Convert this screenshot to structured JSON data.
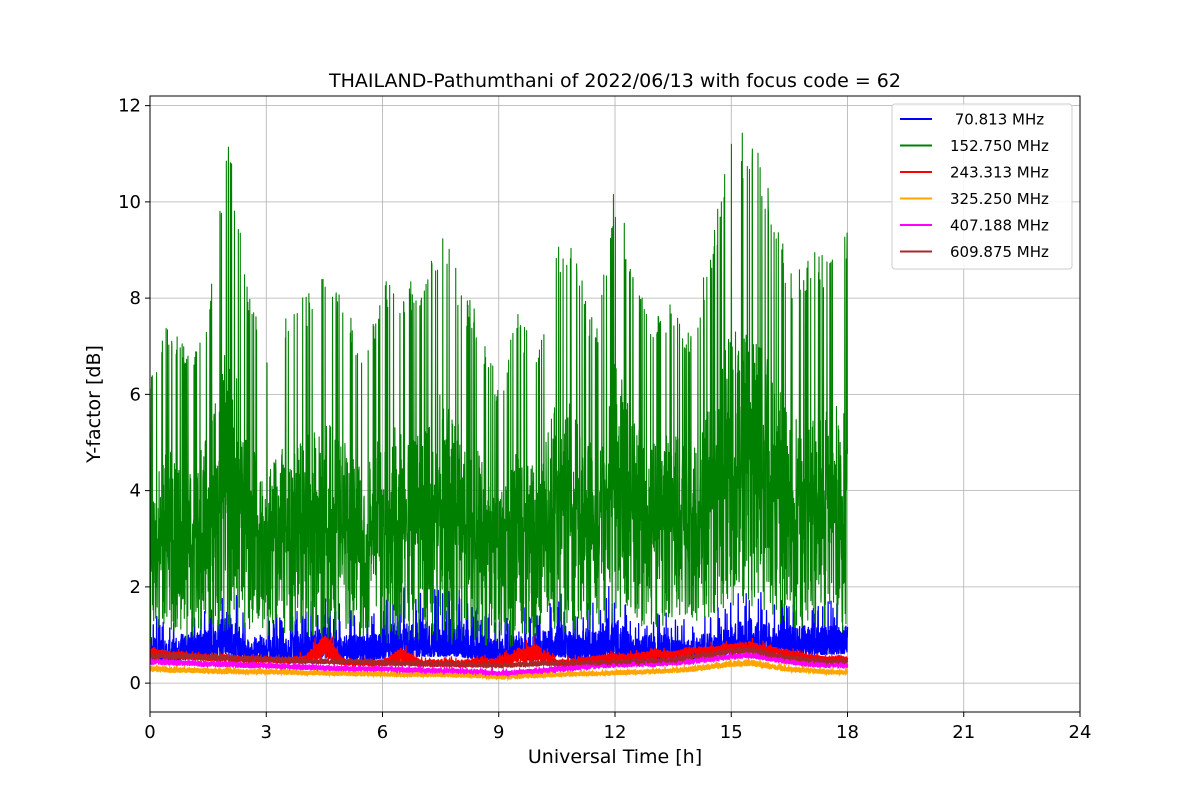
{
  "chart_data": {
    "type": "line",
    "title": "THAILAND-Pathumthani of 2022/06/13 with focus code = 62",
    "xlabel": "Universal Time [h]",
    "ylabel": "Y-factor [dB]",
    "xlim": [
      0,
      24
    ],
    "ylim": [
      -0.6,
      12.2
    ],
    "xticks": [
      0,
      3,
      6,
      9,
      12,
      15,
      18,
      21,
      24
    ],
    "yticks": [
      0,
      2,
      4,
      6,
      8,
      10,
      12
    ],
    "grid": true,
    "legend_position": "top-right",
    "series": [
      {
        "name": " 70.813 MHz",
        "color": "#0000ff",
        "x": [
          0,
          0.5,
          1,
          1.5,
          2,
          2.5,
          3,
          3.5,
          4,
          4.5,
          5,
          5.5,
          6,
          6.5,
          7,
          7.5,
          8,
          8.5,
          9,
          9.5,
          10,
          10.5,
          11,
          11.5,
          12,
          12.5,
          13,
          13.5,
          14,
          14.5,
          15,
          15.5,
          16,
          16.5,
          17,
          17.5,
          18
        ],
        "low": [
          0.2,
          0.3,
          0.3,
          0.3,
          0.3,
          0.3,
          0.3,
          0.3,
          0.3,
          0.3,
          0.3,
          0.3,
          0.3,
          0.3,
          0.3,
          0.3,
          0.3,
          0.3,
          0.3,
          0.3,
          0.3,
          0.3,
          0.3,
          0.3,
          0.3,
          0.3,
          0.3,
          0.3,
          0.3,
          0.4,
          0.4,
          0.4,
          0.4,
          0.4,
          0.4,
          0.4,
          0.4
        ],
        "high": [
          1.5,
          1.3,
          1.6,
          1.7,
          2.3,
          1.4,
          1.5,
          1.4,
          1.7,
          1.8,
          1.6,
          1.4,
          1.7,
          2.0,
          2.0,
          2.0,
          2.0,
          1.5,
          1.4,
          1.6,
          1.5,
          2.0,
          1.6,
          1.8,
          2.2,
          1.3,
          1.6,
          1.4,
          1.3,
          1.6,
          1.8,
          2.0,
          1.8,
          1.8,
          1.7,
          1.7,
          1.8
        ]
      },
      {
        "name": "152.750 MHz",
        "color": "#008000",
        "x": [
          0,
          0.5,
          1,
          1.5,
          2,
          2.5,
          3,
          3.5,
          4,
          4.5,
          5,
          5.5,
          6,
          6.5,
          7,
          7.5,
          8,
          8.5,
          9,
          9.5,
          10,
          10.5,
          11,
          11.5,
          12,
          12.5,
          13,
          13.5,
          14,
          14.5,
          15,
          15.5,
          16,
          16.5,
          17,
          17.5,
          18
        ],
        "low": [
          0.8,
          1.1,
          0.9,
          1.2,
          1.0,
          1.1,
          0.9,
          1.0,
          0.8,
          0.9,
          0.9,
          0.9,
          0.8,
          0.9,
          0.9,
          0.8,
          0.8,
          0.8,
          0.7,
          0.8,
          0.9,
          0.9,
          1.0,
          0.9,
          1.0,
          1.2,
          1.1,
          1.2,
          1.3,
          1.2,
          1.6,
          1.5,
          1.5,
          1.0,
          0.9,
          0.9,
          1.0
        ],
        "high": [
          6.3,
          7.6,
          6.8,
          8.0,
          11.6,
          8.5,
          6.7,
          7.7,
          8.1,
          8.5,
          8.3,
          6.6,
          8.4,
          8.3,
          8.5,
          9.6,
          8.4,
          7.6,
          6.2,
          7.7,
          6.9,
          9.3,
          9.0,
          7.3,
          10.6,
          8.5,
          7.6,
          8.0,
          7.3,
          9.4,
          11.3,
          11.6,
          10.3,
          8.7,
          9.0,
          8.9,
          9.4
        ]
      },
      {
        "name": "243.313 MHz",
        "color": "#ff0000",
        "x": [
          0,
          0.5,
          1,
          1.5,
          2,
          2.5,
          3,
          3.5,
          4,
          4.5,
          5,
          5.5,
          6,
          6.5,
          7,
          7.5,
          8,
          8.5,
          9,
          9.5,
          10,
          10.5,
          11,
          11.5,
          12,
          12.5,
          13,
          13.5,
          14,
          14.5,
          15,
          15.5,
          16,
          16.5,
          17,
          17.5,
          18
        ],
        "low": [
          0.5,
          0.45,
          0.45,
          0.4,
          0.4,
          0.38,
          0.38,
          0.35,
          0.33,
          0.33,
          0.3,
          0.3,
          0.3,
          0.28,
          0.28,
          0.27,
          0.26,
          0.25,
          0.25,
          0.28,
          0.3,
          0.3,
          0.32,
          0.35,
          0.38,
          0.4,
          0.42,
          0.45,
          0.5,
          0.55,
          0.6,
          0.62,
          0.55,
          0.5,
          0.45,
          0.42,
          0.42
        ],
        "high": [
          0.8,
          0.75,
          0.7,
          0.65,
          0.65,
          0.6,
          0.6,
          0.6,
          0.65,
          1.3,
          0.6,
          0.55,
          0.55,
          0.9,
          0.55,
          0.6,
          0.55,
          0.65,
          0.6,
          0.9,
          1.0,
          0.55,
          0.6,
          0.65,
          0.7,
          0.7,
          0.8,
          0.75,
          0.85,
          0.85,
          0.9,
          0.95,
          0.85,
          0.75,
          0.65,
          0.6,
          0.6
        ]
      },
      {
        "name": "325.250 MHz",
        "color": "#ffa500",
        "x": [
          0,
          0.5,
          1,
          1.5,
          2,
          2.5,
          3,
          3.5,
          4,
          4.5,
          5,
          5.5,
          6,
          6.5,
          7,
          7.5,
          8,
          8.5,
          9,
          9.5,
          10,
          10.5,
          11,
          11.5,
          12,
          12.5,
          13,
          13.5,
          14,
          14.5,
          15,
          15.5,
          16,
          16.5,
          17,
          17.5,
          18
        ],
        "low": [
          0.2,
          0.18,
          0.18,
          0.16,
          0.16,
          0.15,
          0.15,
          0.14,
          0.14,
          0.13,
          0.12,
          0.12,
          0.11,
          0.1,
          0.1,
          0.1,
          0.09,
          0.08,
          0.05,
          0.06,
          0.08,
          0.1,
          0.12,
          0.12,
          0.14,
          0.15,
          0.16,
          0.18,
          0.2,
          0.25,
          0.3,
          0.32,
          0.25,
          0.2,
          0.18,
          0.15,
          0.15
        ],
        "high": [
          0.4,
          0.38,
          0.37,
          0.35,
          0.35,
          0.33,
          0.33,
          0.32,
          0.3,
          0.3,
          0.28,
          0.27,
          0.27,
          0.26,
          0.25,
          0.25,
          0.24,
          0.23,
          0.2,
          0.22,
          0.25,
          0.25,
          0.27,
          0.28,
          0.3,
          0.32,
          0.33,
          0.35,
          0.4,
          0.45,
          0.5,
          0.55,
          0.45,
          0.38,
          0.35,
          0.32,
          0.3
        ]
      },
      {
        "name": "407.188 MHz",
        "color": "#ff00ff",
        "x": [
          0,
          0.5,
          1,
          1.5,
          2,
          2.5,
          3,
          3.5,
          4,
          4.5,
          5,
          5.5,
          6,
          6.5,
          7,
          7.5,
          8,
          8.5,
          9,
          9.5,
          10,
          10.5,
          11,
          11.5,
          12,
          12.5,
          13,
          13.5,
          14,
          14.5,
          15,
          15.5,
          16,
          16.5,
          17,
          17.5,
          18
        ],
        "low": [
          0.35,
          0.33,
          0.32,
          0.3,
          0.3,
          0.28,
          0.27,
          0.25,
          0.24,
          0.22,
          0.21,
          0.2,
          0.2,
          0.18,
          0.17,
          0.16,
          0.15,
          0.13,
          0.1,
          0.12,
          0.15,
          0.18,
          0.22,
          0.25,
          0.28,
          0.3,
          0.3,
          0.33,
          0.35,
          0.4,
          0.45,
          0.48,
          0.42,
          0.35,
          0.3,
          0.28,
          0.28
        ],
        "high": [
          0.55,
          0.55,
          0.52,
          0.5,
          0.5,
          0.48,
          0.47,
          0.45,
          0.44,
          0.42,
          0.4,
          0.4,
          0.4,
          0.38,
          0.37,
          0.36,
          0.35,
          0.33,
          0.3,
          0.33,
          0.36,
          0.4,
          0.45,
          0.5,
          0.52,
          0.52,
          0.52,
          0.55,
          0.58,
          0.62,
          0.66,
          0.7,
          0.62,
          0.55,
          0.5,
          0.48,
          0.48
        ]
      },
      {
        "name": "609.875 MHz",
        "color": "#a52a2a",
        "x": [
          0,
          0.5,
          1,
          1.5,
          2,
          2.5,
          3,
          3.5,
          4,
          4.5,
          5,
          5.5,
          6,
          6.5,
          7,
          7.5,
          8,
          8.5,
          9,
          9.5,
          10,
          10.5,
          11,
          11.5,
          12,
          12.5,
          13,
          13.5,
          14,
          14.5,
          15,
          15.5,
          16,
          16.5,
          17,
          17.5,
          18
        ],
        "low": [
          0.45,
          0.45,
          0.44,
          0.42,
          0.42,
          0.4,
          0.4,
          0.38,
          0.37,
          0.36,
          0.35,
          0.35,
          0.33,
          0.32,
          0.32,
          0.31,
          0.3,
          0.3,
          0.28,
          0.3,
          0.32,
          0.33,
          0.33,
          0.34,
          0.35,
          0.36,
          0.37,
          0.38,
          0.45,
          0.5,
          0.55,
          0.58,
          0.5,
          0.45,
          0.4,
          0.38,
          0.38
        ],
        "high": [
          0.7,
          0.7,
          0.68,
          0.66,
          0.64,
          0.62,
          0.6,
          0.58,
          0.56,
          0.55,
          0.54,
          0.53,
          0.52,
          0.51,
          0.5,
          0.49,
          0.48,
          0.47,
          0.46,
          0.48,
          0.5,
          0.5,
          0.51,
          0.52,
          0.53,
          0.54,
          0.55,
          0.57,
          0.65,
          0.72,
          0.78,
          0.8,
          0.7,
          0.62,
          0.56,
          0.55,
          0.54
        ]
      }
    ]
  }
}
